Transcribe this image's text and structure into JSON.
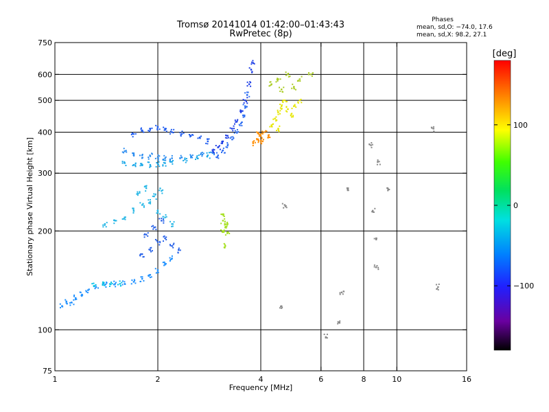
{
  "chart_data": {
    "type": "scatter",
    "title_line1": "Tromsø 20141014 01:42:00–01:43:43",
    "title_line2": "RwPretec (8p)",
    "xlabel": "Frequency [MHz]",
    "ylabel": "Stationary phase Virtual Height [km]",
    "x_scale": "log",
    "y_scale": "log",
    "xlim": [
      1,
      16
    ],
    "ylim": [
      75,
      750
    ],
    "x_ticks": [
      {
        "value": 1,
        "label": "1"
      },
      {
        "value": 2,
        "label": "2"
      },
      {
        "value": 4,
        "label": "4"
      },
      {
        "value": 6,
        "label": "6"
      },
      {
        "value": 8,
        "label": "8"
      },
      {
        "value": 10,
        "label": "10"
      },
      {
        "value": 16,
        "label": "16"
      }
    ],
    "x_gridlines": [
      2,
      4,
      6,
      8,
      10
    ],
    "y_ticks": [
      {
        "value": 75,
        "label": "75"
      },
      {
        "value": 100,
        "label": "100"
      },
      {
        "value": 200,
        "label": "200"
      },
      {
        "value": 300,
        "label": "300"
      },
      {
        "value": 400,
        "label": "400"
      },
      {
        "value": 500,
        "label": "500"
      },
      {
        "value": 600,
        "label": "600"
      },
      {
        "value": 750,
        "label": "750"
      }
    ],
    "y_gridlines": [
      100,
      200,
      300,
      400,
      500,
      600
    ],
    "legend": {
      "title": "Phases",
      "line1": "mean, sd,O: −74.0, 17.6",
      "line2": "mean, sd,X:  98.2, 27.1"
    },
    "colorbar": {
      "label": "[deg]",
      "range": [
        -180,
        180
      ],
      "ticks": [
        {
          "value": 100,
          "label": "100"
        },
        {
          "value": 0,
          "label": "0"
        },
        {
          "value": -100,
          "label": "−100"
        }
      ]
    },
    "clusters": [
      {
        "name": "low-trace",
        "color": "#1e90ff",
        "points": [
          [
            1.05,
            118
          ],
          [
            1.08,
            122
          ],
          [
            1.12,
            121
          ],
          [
            1.15,
            125
          ],
          [
            1.2,
            128
          ],
          [
            1.25,
            132
          ],
          [
            1.32,
            135
          ],
          [
            1.4,
            137
          ],
          [
            1.5,
            138
          ],
          [
            1.6,
            138
          ],
          [
            1.7,
            140
          ],
          [
            1.8,
            143
          ],
          [
            1.9,
            147
          ],
          [
            2.0,
            152
          ],
          [
            2.1,
            158
          ],
          [
            2.2,
            165
          ]
        ]
      },
      {
        "name": "low-trace-cyan",
        "color": "#00bfe6",
        "points": [
          [
            1.3,
            136
          ],
          [
            1.38,
            137
          ],
          [
            1.45,
            138
          ],
          [
            1.55,
            138
          ]
        ]
      },
      {
        "name": "F-trace-upper",
        "color": "#1e5cf0",
        "points": [
          [
            1.7,
            395
          ],
          [
            1.8,
            405
          ],
          [
            1.9,
            410
          ],
          [
            2.0,
            415
          ],
          [
            2.1,
            410
          ],
          [
            2.2,
            400
          ],
          [
            2.35,
            395
          ],
          [
            2.5,
            390
          ],
          [
            2.65,
            385
          ],
          [
            2.8,
            375
          ]
        ]
      },
      {
        "name": "F-trace-mid",
        "color": "#2a8cf0",
        "points": [
          [
            1.6,
            350
          ],
          [
            1.7,
            345
          ],
          [
            1.8,
            340
          ],
          [
            1.9,
            338
          ],
          [
            2.0,
            335
          ],
          [
            2.1,
            333
          ],
          [
            2.2,
            333
          ],
          [
            2.35,
            335
          ],
          [
            2.5,
            338
          ],
          [
            2.7,
            342
          ],
          [
            2.9,
            348
          ]
        ]
      },
      {
        "name": "F-trace-lower",
        "color": "#1aa8e8",
        "points": [
          [
            1.6,
            322
          ],
          [
            1.7,
            318
          ],
          [
            1.8,
            317
          ],
          [
            1.9,
            318
          ],
          [
            2.0,
            320
          ],
          [
            2.1,
            322
          ],
          [
            2.2,
            325
          ],
          [
            2.4,
            330
          ],
          [
            2.6,
            335
          ],
          [
            2.8,
            340
          ]
        ]
      },
      {
        "name": "F-rise",
        "color": "#1f3fe6",
        "points": [
          [
            2.9,
            350
          ],
          [
            3.0,
            360
          ],
          [
            3.1,
            375
          ],
          [
            3.2,
            390
          ],
          [
            3.3,
            410
          ],
          [
            3.4,
            430
          ],
          [
            3.5,
            460
          ],
          [
            3.6,
            500
          ],
          [
            3.7,
            560
          ],
          [
            3.75,
            620
          ],
          [
            3.8,
            650
          ]
        ]
      },
      {
        "name": "F-rise-2",
        "color": "#2f6ff2",
        "points": [
          [
            3.0,
            340
          ],
          [
            3.1,
            352
          ],
          [
            3.2,
            365
          ],
          [
            3.3,
            380
          ],
          [
            3.4,
            400
          ],
          [
            3.5,
            425
          ],
          [
            3.55,
            450
          ],
          [
            3.6,
            480
          ],
          [
            3.65,
            520
          ]
        ]
      },
      {
        "name": "spread-cyan",
        "color": "#26b7e6",
        "points": [
          [
            1.4,
            210
          ],
          [
            1.5,
            215
          ],
          [
            1.6,
            220
          ],
          [
            1.7,
            230
          ],
          [
            1.8,
            240
          ],
          [
            1.9,
            245
          ],
          [
            2.0,
            230
          ],
          [
            2.1,
            220
          ],
          [
            2.2,
            210
          ],
          [
            1.75,
            260
          ],
          [
            1.85,
            270
          ],
          [
            1.95,
            255
          ],
          [
            2.05,
            265
          ]
        ]
      },
      {
        "name": "spread-blue",
        "color": "#2560e8",
        "points": [
          [
            1.8,
            170
          ],
          [
            1.9,
            175
          ],
          [
            2.0,
            185
          ],
          [
            2.1,
            190
          ],
          [
            2.2,
            180
          ],
          [
            2.3,
            175
          ],
          [
            1.85,
            195
          ],
          [
            1.95,
            205
          ],
          [
            2.05,
            215
          ]
        ]
      },
      {
        "name": "X-yellow",
        "color": "#e6e600",
        "points": [
          [
            4.3,
            420
          ],
          [
            4.4,
            440
          ],
          [
            4.5,
            460
          ],
          [
            4.6,
            480
          ],
          [
            4.7,
            500
          ],
          [
            4.8,
            470
          ],
          [
            4.9,
            450
          ],
          [
            5.0,
            480
          ],
          [
            5.2,
            500
          ],
          [
            4.5,
            410
          ]
        ]
      },
      {
        "name": "X-orange",
        "color": "#ff8c00",
        "points": [
          [
            3.8,
            370
          ],
          [
            3.9,
            380
          ],
          [
            4.0,
            390
          ],
          [
            4.1,
            400
          ],
          [
            4.2,
            385
          ],
          [
            4.05,
            375
          ],
          [
            3.95,
            395
          ]
        ]
      },
      {
        "name": "X-upper",
        "color": "#aacc22",
        "points": [
          [
            4.3,
            560
          ],
          [
            4.5,
            580
          ],
          [
            4.8,
            600
          ],
          [
            5.2,
            580
          ],
          [
            5.6,
            600
          ],
          [
            4.6,
            540
          ],
          [
            5.0,
            550
          ]
        ]
      },
      {
        "name": "green-blob",
        "color": "#a6e022",
        "points": [
          [
            3.1,
            200
          ],
          [
            3.15,
            205
          ],
          [
            3.2,
            210
          ],
          [
            3.1,
            215
          ],
          [
            3.2,
            198
          ],
          [
            3.15,
            180
          ],
          [
            3.1,
            225
          ]
        ]
      },
      {
        "name": "sparse",
        "color": "#888888",
        "points": [
          [
            6.2,
            95
          ],
          [
            6.8,
            105
          ],
          [
            6.9,
            130
          ],
          [
            7.2,
            270
          ],
          [
            8.5,
            230
          ],
          [
            8.7,
            190
          ],
          [
            8.7,
            155
          ],
          [
            9.4,
            270
          ],
          [
            13.2,
            135
          ],
          [
            12.8,
            410
          ],
          [
            8.4,
            365
          ],
          [
            8.8,
            325
          ],
          [
            4.6,
            118
          ],
          [
            4.7,
            240
          ]
        ]
      }
    ]
  }
}
